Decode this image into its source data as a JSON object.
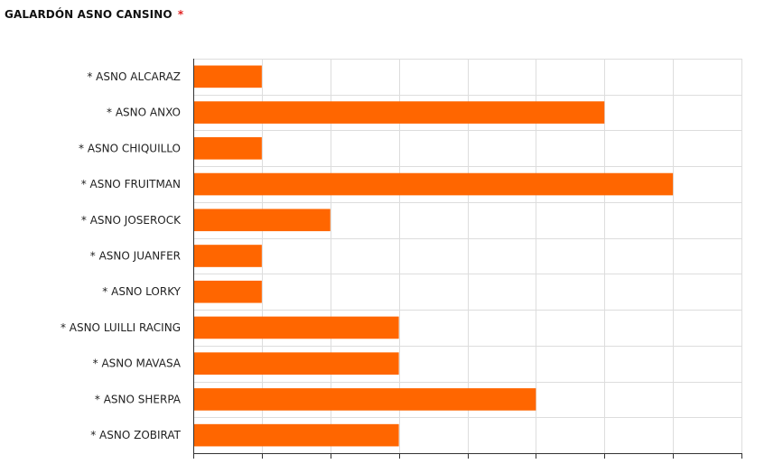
{
  "header": {
    "title": "GALARDÓN ASNO CANSINO",
    "title_marker": "*",
    "title_marker_color": "#e02020"
  },
  "chart_data": {
    "type": "bar",
    "orientation": "horizontal",
    "title": "GALARDÓN ASNO CANSINO",
    "categories": [
      "* ASNO ALCARAZ",
      "* ASNO ANXO",
      "* ASNO CHIQUILLO",
      "* ASNO FRUITMAN",
      "* ASNO JOSEROCK",
      "* ASNO JUANFER",
      "* ASNO LORKY",
      "* ASNO LUILLI RACING",
      "* ASNO MAVASA",
      "* ASNO SHERPA",
      "* ASNO ZOBIRAT"
    ],
    "values": [
      1,
      6,
      1,
      7,
      2,
      1,
      1,
      3,
      3,
      5,
      3
    ],
    "xlim": [
      0,
      8
    ],
    "tick_labels_shown": false,
    "grid": true,
    "bar_color": "#ff6600",
    "grid_color": "#dddddd",
    "axis_color": "#333333",
    "xlabel": "",
    "ylabel": ""
  }
}
